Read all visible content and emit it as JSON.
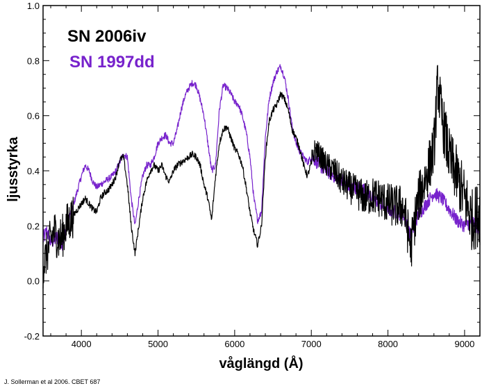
{
  "credit": "J. Sollerman et al 2006. CBET 687",
  "chart_data": {
    "type": "line",
    "xlabel": "våglängd (Å)",
    "ylabel": "ljusstyrka",
    "xlim": [
      3500,
      9200
    ],
    "ylim": [
      -0.2,
      1.0
    ],
    "x_ticks": [
      4000,
      5000,
      6000,
      7000,
      8000,
      9000
    ],
    "y_ticks": [
      -0.2,
      0.0,
      0.2,
      0.4,
      0.6,
      0.8,
      1.0
    ],
    "y_tick_labels": [
      "-0.2",
      "0.0",
      "0.2",
      "0.4",
      "0.6",
      "0.8",
      "1.0"
    ],
    "legend_position": "top-left",
    "grid": false,
    "series": [
      {
        "name": "SN 2006iv",
        "color": "#000000",
        "noisy": true,
        "x": [
          3500,
          3550,
          3600,
          3650,
          3700,
          3750,
          3800,
          3850,
          3900,
          3950,
          4000,
          4050,
          4100,
          4150,
          4200,
          4250,
          4300,
          4350,
          4400,
          4450,
          4500,
          4550,
          4600,
          4650,
          4700,
          4750,
          4800,
          4850,
          4900,
          4950,
          5000,
          5050,
          5100,
          5150,
          5200,
          5250,
          5300,
          5350,
          5400,
          5450,
          5500,
          5550,
          5600,
          5650,
          5700,
          5750,
          5800,
          5850,
          5900,
          5950,
          6000,
          6050,
          6100,
          6150,
          6200,
          6250,
          6300,
          6350,
          6400,
          6450,
          6500,
          6550,
          6600,
          6650,
          6700,
          6750,
          6800,
          6850,
          6900,
          6950,
          7000,
          7050,
          7100,
          7200,
          7300,
          7400,
          7500,
          7600,
          7700,
          7800,
          7900,
          8000,
          8100,
          8200,
          8300,
          8350,
          8400,
          8500,
          8600,
          8650,
          8700,
          8800,
          8900,
          9000,
          9100,
          9200
        ],
        "y": [
          0.05,
          0.1,
          0.15,
          0.18,
          0.15,
          0.16,
          0.2,
          0.22,
          0.24,
          0.26,
          0.28,
          0.3,
          0.28,
          0.26,
          0.25,
          0.3,
          0.32,
          0.33,
          0.35,
          0.38,
          0.44,
          0.45,
          0.35,
          0.2,
          0.1,
          0.2,
          0.3,
          0.36,
          0.4,
          0.42,
          0.4,
          0.42,
          0.38,
          0.36,
          0.4,
          0.42,
          0.43,
          0.44,
          0.45,
          0.46,
          0.45,
          0.42,
          0.35,
          0.3,
          0.22,
          0.38,
          0.5,
          0.55,
          0.56,
          0.52,
          0.48,
          0.46,
          0.42,
          0.34,
          0.25,
          0.18,
          0.13,
          0.2,
          0.45,
          0.58,
          0.62,
          0.64,
          0.68,
          0.66,
          0.62,
          0.55,
          0.52,
          0.48,
          0.42,
          0.38,
          0.43,
          0.48,
          0.46,
          0.42,
          0.4,
          0.36,
          0.34,
          0.32,
          0.3,
          0.31,
          0.3,
          0.28,
          0.27,
          0.27,
          0.12,
          0.22,
          0.3,
          0.38,
          0.48,
          0.72,
          0.6,
          0.45,
          0.38,
          0.3,
          0.22,
          0.25
        ]
      },
      {
        "name": "SN 1997dd",
        "color": "#7722cc",
        "noisy": false,
        "x": [
          3500,
          3550,
          3600,
          3650,
          3700,
          3750,
          3800,
          3850,
          3900,
          3950,
          4000,
          4050,
          4100,
          4150,
          4200,
          4250,
          4300,
          4350,
          4400,
          4450,
          4500,
          4550,
          4600,
          4650,
          4700,
          4750,
          4800,
          4850,
          4900,
          4950,
          5000,
          5050,
          5100,
          5150,
          5200,
          5250,
          5300,
          5350,
          5400,
          5450,
          5500,
          5550,
          5600,
          5650,
          5700,
          5750,
          5800,
          5850,
          5900,
          5950,
          6000,
          6050,
          6100,
          6150,
          6200,
          6250,
          6300,
          6350,
          6400,
          6450,
          6500,
          6550,
          6600,
          6650,
          6700,
          6750,
          6800,
          6850,
          6900,
          6950,
          7000,
          7050,
          7100,
          7200,
          7300,
          7400,
          7500,
          7600,
          7700,
          7800,
          7900,
          8000,
          8100,
          8200,
          8300,
          8350,
          8400,
          8500,
          8600,
          8700,
          8800,
          8900,
          9000,
          9100,
          9200
        ],
        "y": [
          0.15,
          0.18,
          0.14,
          0.15,
          0.16,
          0.14,
          0.18,
          0.24,
          0.28,
          0.33,
          0.38,
          0.42,
          0.4,
          0.36,
          0.34,
          0.35,
          0.36,
          0.37,
          0.38,
          0.4,
          0.43,
          0.46,
          0.45,
          0.3,
          0.2,
          0.3,
          0.38,
          0.42,
          0.42,
          0.45,
          0.5,
          0.52,
          0.53,
          0.5,
          0.5,
          0.55,
          0.62,
          0.67,
          0.7,
          0.72,
          0.71,
          0.66,
          0.6,
          0.5,
          0.4,
          0.42,
          0.62,
          0.71,
          0.7,
          0.68,
          0.65,
          0.64,
          0.6,
          0.54,
          0.45,
          0.3,
          0.22,
          0.25,
          0.52,
          0.66,
          0.72,
          0.76,
          0.78,
          0.74,
          0.66,
          0.56,
          0.5,
          0.47,
          0.45,
          0.43,
          0.45,
          0.44,
          0.42,
          0.4,
          0.38,
          0.37,
          0.34,
          0.34,
          0.33,
          0.3,
          0.28,
          0.26,
          0.25,
          0.24,
          0.16,
          0.21,
          0.24,
          0.28,
          0.32,
          0.3,
          0.26,
          0.22,
          0.2,
          0.22,
          0.18
        ]
      }
    ]
  }
}
